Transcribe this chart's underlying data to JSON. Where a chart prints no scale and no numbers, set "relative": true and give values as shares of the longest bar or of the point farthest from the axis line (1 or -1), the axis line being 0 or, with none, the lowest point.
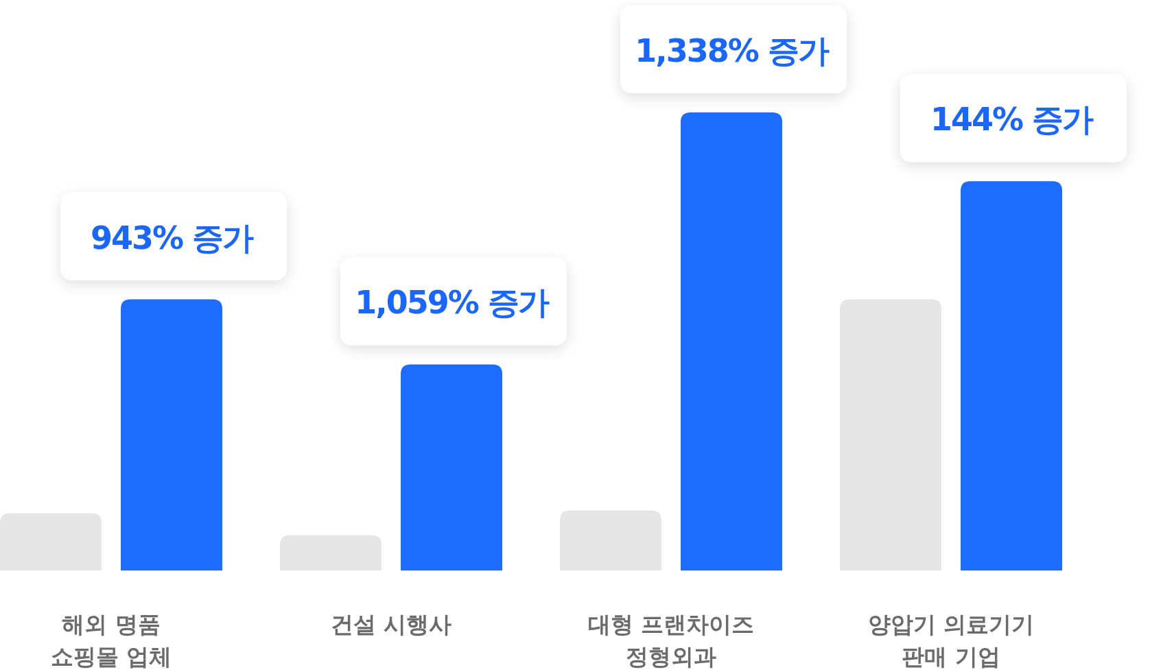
{
  "chart_data": {
    "type": "bar",
    "relative": true,
    "categories": [
      "해외 명품\n쇼핑몰 업체",
      "건설 시행사",
      "대형 프랜차이즈\n정형외과",
      "양압기 의료기기\n판매 기업"
    ],
    "series": [
      {
        "color": "#e6e6e6",
        "values": [
          0.125,
          0.077,
          0.131,
          0.592
        ]
      },
      {
        "color": "#1e6bff",
        "values": [
          0.592,
          0.45,
          1.0,
          0.85
        ]
      }
    ],
    "annotations": [
      "943% 증가",
      "1,059% 증가",
      "1,338% 증가",
      "144% 증가"
    ]
  }
}
